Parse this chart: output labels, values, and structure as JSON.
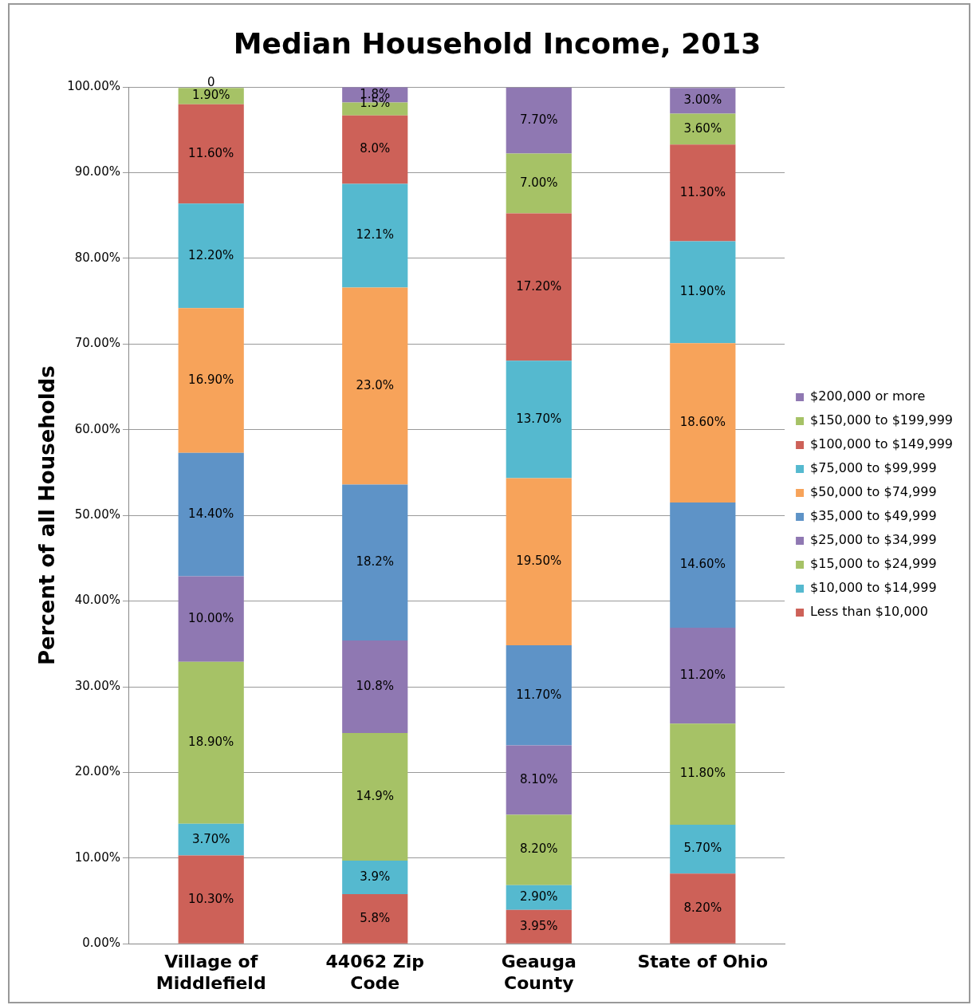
{
  "chart_data": {
    "type": "bar",
    "title": "Median Household Income, 2013",
    "ylabel": "Percent of all Households",
    "categories": [
      "Village of Middlefield",
      "44062 Zip Code",
      "Geauga County",
      "State of Ohio"
    ],
    "stacked": true,
    "ylim": [
      0,
      100
    ],
    "yticks": [
      {
        "value": 0,
        "label": "0.00%"
      },
      {
        "value": 10,
        "label": "10.00%"
      },
      {
        "value": 20,
        "label": "20.00%"
      },
      {
        "value": 30,
        "label": "30.00%"
      },
      {
        "value": 40,
        "label": "40.00%"
      },
      {
        "value": 50,
        "label": "50.00%"
      },
      {
        "value": 60,
        "label": "60.00%"
      },
      {
        "value": 70,
        "label": "70.00%"
      },
      {
        "value": 80,
        "label": "80.00%"
      },
      {
        "value": 90,
        "label": "90.00%"
      },
      {
        "value": 100,
        "label": "100.00%"
      }
    ],
    "grid": "y",
    "legend": "right",
    "series": [
      {
        "name": "Less than $10,000",
        "color": "#cd6158",
        "values": [
          10.3,
          5.8,
          3.95,
          8.2
        ],
        "value_labels": [
          "10.30%",
          "5.8%",
          "3.95%",
          "8.20%"
        ]
      },
      {
        "name": "$10,000 to $14,999",
        "color": "#55b9cf",
        "values": [
          3.7,
          3.9,
          2.9,
          5.7
        ],
        "value_labels": [
          "3.70%",
          "3.9%",
          "2.90%",
          "5.70%"
        ]
      },
      {
        "name": "$15,000 to $24,999",
        "color": "#a6c266",
        "values": [
          18.9,
          14.9,
          8.2,
          11.8
        ],
        "value_labels": [
          "18.90%",
          "14.9%",
          "8.20%",
          "11.80%"
        ]
      },
      {
        "name": "$25,000 to $34,999",
        "color": "#8f78b2",
        "values": [
          10,
          10.8,
          8.1,
          11.2
        ],
        "value_labels": [
          "10.00%",
          "10.8%",
          "8.10%",
          "11.20%"
        ]
      },
      {
        "name": "$35,000 to $49,999",
        "color": "#5e93c7",
        "values": [
          14.4,
          18.2,
          11.7,
          14.6
        ],
        "value_labels": [
          "14.40%",
          "18.2%",
          "11.70%",
          "14.60%"
        ]
      },
      {
        "name": "$50,000 to $74,999",
        "color": "#f7a35a",
        "values": [
          16.9,
          23.0,
          19.5,
          18.6
        ],
        "value_labels": [
          "16.90%",
          "23.0%",
          "19.50%",
          "18.60%"
        ]
      },
      {
        "name": "$75,000 to $99,999",
        "color": "#55b9cf",
        "values": [
          12.2,
          12.1,
          13.7,
          11.9
        ],
        "value_labels": [
          "12.20%",
          "12.1%",
          "13.70%",
          "11.90%"
        ]
      },
      {
        "name": "$100,000 to $149,999",
        "color": "#cd6158",
        "values": [
          11.6,
          8.0,
          17.2,
          11.3
        ],
        "value_labels": [
          "11.60%",
          "8.0%",
          "17.20%",
          "11.30%"
        ]
      },
      {
        "name": "$150,000 to $199,999",
        "color": "#a6c266",
        "values": [
          1.9,
          1.5,
          7.0,
          3.6
        ],
        "value_labels": [
          "1.90%",
          "1.5%",
          "7.00%",
          "3.60%"
        ]
      },
      {
        "name": "$200,000 or more",
        "color": "#8f78b2",
        "values": [
          0,
          1.8,
          7.7,
          3.0
        ],
        "value_labels": [
          "0",
          "1.8%",
          "7.70%",
          "3.00%"
        ]
      }
    ]
  }
}
